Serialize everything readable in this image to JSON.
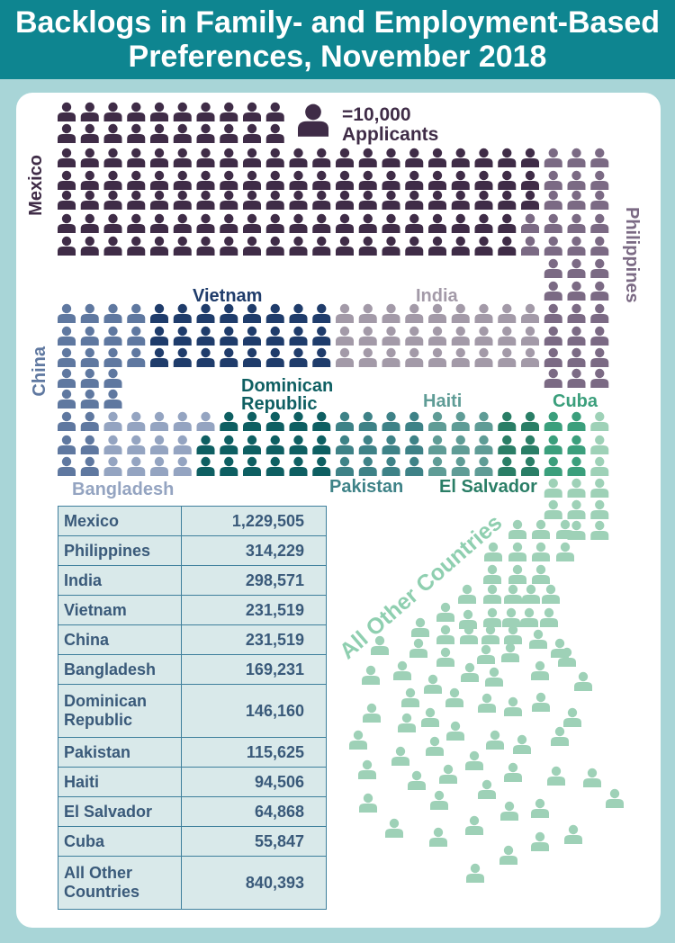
{
  "header": {
    "title": "Backlogs in Family- and Employment-Based Preferences, November 2018"
  },
  "legend": {
    "text": "=10,000 Applicants",
    "unit": 10000
  },
  "colors": {
    "mexico": "#3f2c47",
    "philippines": "#7b6a84",
    "india": "#a39aa8",
    "vietnam": "#1f3c6b",
    "china": "#5f78a0",
    "bangladesh": "#94a4c1",
    "dominican_republic": "#0e5f62",
    "pakistan": "#3e8287",
    "haiti": "#5f9c96",
    "el_salvador": "#2a7e66",
    "cuba": "#3b9f7c",
    "all_other": "#9ed1b7"
  },
  "labels": {
    "mexico": "Mexico",
    "philippines": "Philippines",
    "india": "India",
    "vietnam": "Vietnam",
    "china": "China",
    "bangladesh": "Bangladesh",
    "dominican_republic": "Dominican Republic",
    "pakistan": "Pakistan",
    "haiti": "Haiti",
    "el_salvador": "El Salvador",
    "cuba": "Cuba",
    "all_other": "All Other Countries"
  },
  "table": [
    {
      "country": "Mexico",
      "value": "1,229,505"
    },
    {
      "country": "Philippines",
      "value": "314,229"
    },
    {
      "country": "India",
      "value": "298,571"
    },
    {
      "country": "Vietnam",
      "value": "231,519"
    },
    {
      "country": "China",
      "value": "231,519"
    },
    {
      "country": "Bangladesh",
      "value": "169,231"
    },
    {
      "country": "Dominican Republic",
      "value": "146,160"
    },
    {
      "country": "Pakistan",
      "value": "115,625"
    },
    {
      "country": "Haiti",
      "value": "94,506"
    },
    {
      "country": "El Salvador",
      "value": "64,868"
    },
    {
      "country": "Cuba",
      "value": "55,847"
    },
    {
      "country": "All Other Countries",
      "value": "840,393"
    }
  ]
}
